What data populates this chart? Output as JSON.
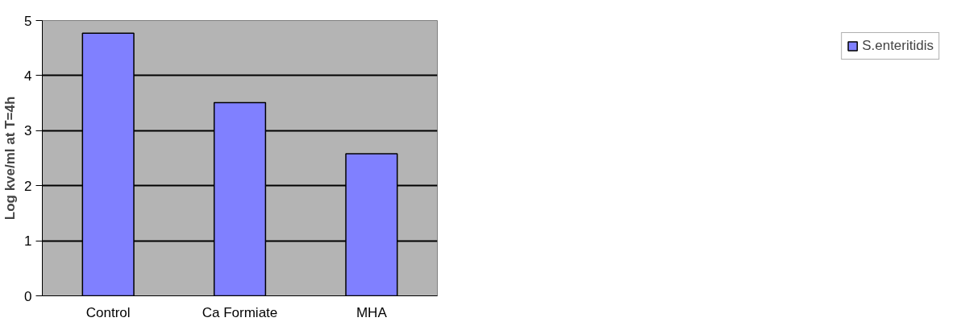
{
  "chart_data": {
    "type": "bar",
    "ylabel": "Log kve/ml at T=4h",
    "categories": [
      "Control",
      "Ca Formiate",
      "MHA"
    ],
    "series": [
      {
        "name": "S.enteritidis",
        "color": "#8080ff",
        "values": [
          4.77,
          3.51,
          2.58
        ]
      }
    ],
    "ylim": [
      0,
      5
    ],
    "yticks": [
      0,
      1,
      2,
      3,
      4,
      5
    ],
    "grid": "y",
    "legend": "right"
  }
}
